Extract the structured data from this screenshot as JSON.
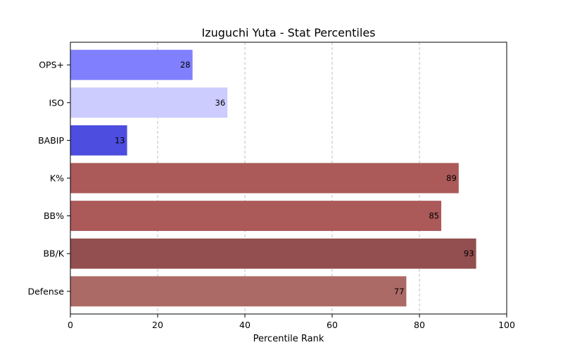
{
  "chart_data": {
    "type": "bar",
    "orientation": "horizontal",
    "title": "Izuguchi Yuta - Stat Percentiles",
    "xlabel": "Percentile Rank",
    "ylabel": "",
    "xlim": [
      0,
      100
    ],
    "xticks": [
      "0",
      "20",
      "40",
      "60",
      "80",
      "100"
    ],
    "grid": "vertical dashed",
    "categories": [
      "OPS+",
      "ISO",
      "BABIP",
      "K%",
      "BB%",
      "BB/K",
      "Defense"
    ],
    "values": [
      28,
      36,
      13,
      89,
      85,
      93,
      77
    ],
    "colors": [
      "#8080ff",
      "#ccccff",
      "#4d4ddf",
      "#ab5959",
      "#ab5959",
      "#934f4f",
      "#ab6a66"
    ]
  }
}
